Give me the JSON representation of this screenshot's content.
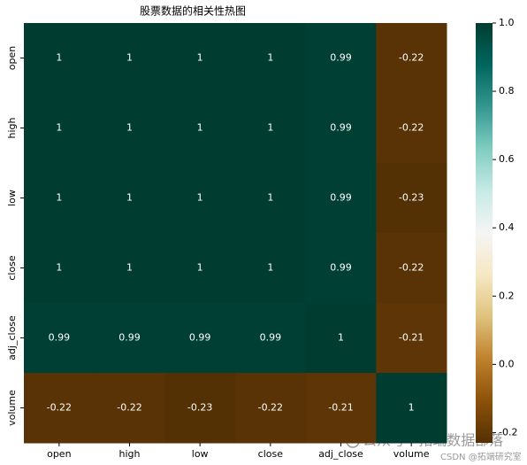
{
  "chart_data": {
    "type": "heatmap",
    "title": "股票数据的相关性热图",
    "x_categories": [
      "open",
      "high",
      "low",
      "close",
      "adj_close",
      "volume"
    ],
    "y_categories": [
      "open",
      "high",
      "low",
      "close",
      "adj_close",
      "volume"
    ],
    "values": [
      [
        1,
        1,
        1,
        1,
        0.99,
        -0.22
      ],
      [
        1,
        1,
        1,
        1,
        0.99,
        -0.22
      ],
      [
        1,
        1,
        1,
        1,
        0.99,
        -0.23
      ],
      [
        1,
        1,
        1,
        1,
        0.99,
        -0.22
      ],
      [
        0.99,
        0.99,
        0.99,
        0.99,
        1,
        -0.21
      ],
      [
        -0.22,
        -0.22,
        -0.23,
        -0.22,
        -0.21,
        1
      ]
    ],
    "clim": [
      -0.23,
      1
    ],
    "colorbar_ticks": [
      {
        "value": 1,
        "label": "1.0"
      },
      0.8,
      0.6,
      0.4,
      0.2,
      {
        "value": 0,
        "label": "0.0"
      },
      -0.2
    ],
    "colormap": [
      "#543005",
      "#8c510a",
      "#bf812d",
      "#dfc27d",
      "#f6e8c3",
      "#f5f5f5",
      "#c7eae5",
      "#80cdc1",
      "#35978f",
      "#01665e",
      "#003c30"
    ],
    "annotation_color": "#ffffff",
    "watermark": [
      "公众号 · 拓端数据部落",
      "CSDN @拓端研究室"
    ]
  }
}
